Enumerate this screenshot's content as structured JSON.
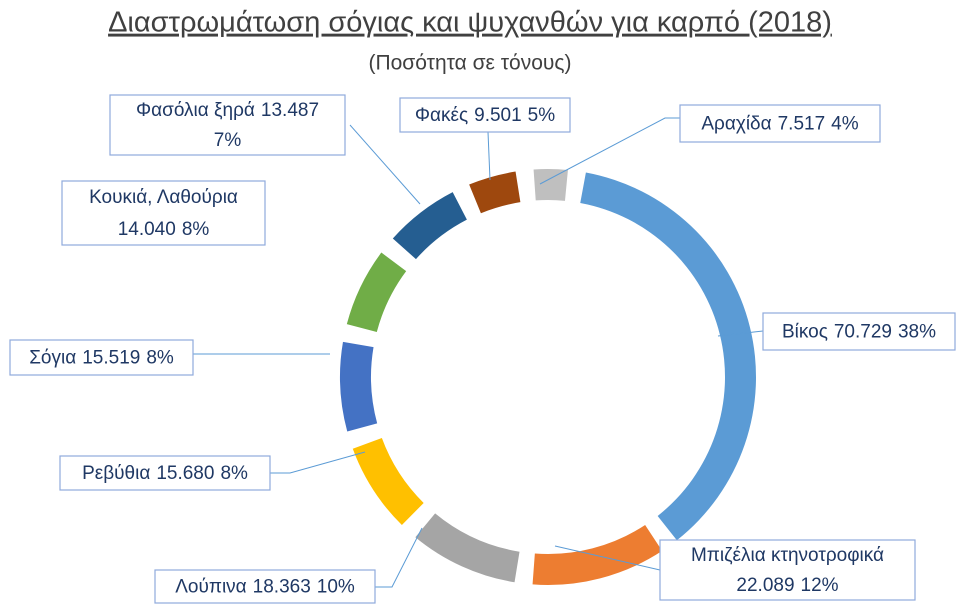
{
  "chart_data": {
    "type": "donut",
    "title": "Διαστρωμάτωση σόγιας και ψυχανθών για καρπό  (2018)",
    "subtitle": "(Ποσότητα σε τόνους)",
    "categories": [
      "Βίκος",
      "Μπιζέλια κτηνοτροφικά",
      "Λούπινα",
      "Ρεβύθια",
      "Σόγια",
      "Κουκιά, Λαθούρια",
      "Φασόλια ξηρά",
      "Φακές",
      "Αραχίδα"
    ],
    "values": [
      70729,
      22089,
      18363,
      15680,
      15519,
      14040,
      13487,
      9501,
      7517
    ],
    "value_labels": [
      "70.729",
      "22.089",
      "18.363",
      "15.680",
      "15.519",
      "14.040",
      "13.487",
      "9.501",
      "7.517"
    ],
    "percent_labels": [
      "38%",
      "12%",
      "10%",
      "8%",
      "8%",
      "8%",
      "7%",
      "5%",
      "4%"
    ],
    "colors": [
      "#5b9bd5",
      "#ed7d31",
      "#a5a5a5",
      "#ffc000",
      "#4472c4",
      "#70ad47",
      "#255e91",
      "#9e480e",
      "#bfbfbf"
    ]
  }
}
